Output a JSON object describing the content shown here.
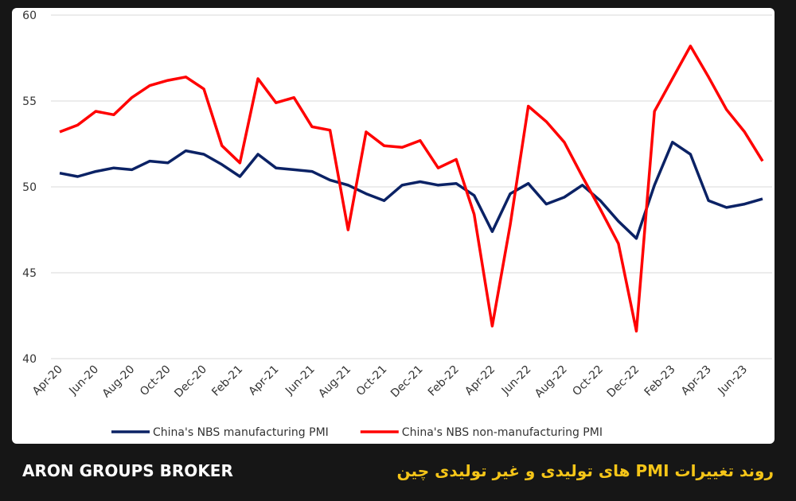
{
  "chart_data": {
    "type": "line",
    "categories": [
      "Apr-20",
      null,
      "Jun-20",
      null,
      "Aug-20",
      null,
      "Oct-20",
      null,
      "Dec-20",
      null,
      "Feb-21",
      null,
      "Apr-21",
      null,
      "Jun-21",
      null,
      "Aug-21",
      null,
      "Oct-21",
      null,
      "Dec-21",
      null,
      "Feb-22",
      null,
      "Apr-22",
      null,
      "Jun-22",
      null,
      "Aug-22",
      null,
      "Oct-22",
      null,
      "Dec-22",
      null,
      "Feb-23",
      null,
      "Apr-23",
      null,
      "Jun-23",
      null
    ],
    "series": [
      {
        "name": "China's NBS manufacturing PMI",
        "color": "#0b2265",
        "values": [
          50.8,
          50.6,
          50.9,
          51.1,
          51.0,
          51.5,
          51.4,
          52.1,
          51.9,
          51.3,
          50.6,
          51.9,
          51.1,
          51.0,
          50.9,
          50.4,
          50.1,
          49.6,
          49.2,
          50.1,
          50.3,
          50.1,
          50.2,
          49.5,
          47.4,
          49.6,
          50.2,
          49.0,
          49.4,
          50.1,
          49.2,
          48.0,
          47.0,
          50.1,
          52.6,
          51.9,
          49.2,
          48.8,
          49.0,
          49.3
        ]
      },
      {
        "name": "China's NBS non-manufacturing PMI",
        "color": "#ff0000",
        "values": [
          53.2,
          53.6,
          54.4,
          54.2,
          55.2,
          55.9,
          56.2,
          56.4,
          55.7,
          52.4,
          51.4,
          56.3,
          54.9,
          55.2,
          53.5,
          53.3,
          47.5,
          53.2,
          52.4,
          52.3,
          52.7,
          51.1,
          51.6,
          48.4,
          41.9,
          47.8,
          54.7,
          53.8,
          52.6,
          50.6,
          48.7,
          46.7,
          41.6,
          54.4,
          56.3,
          58.2,
          56.4,
          54.5,
          53.2,
          51.5
        ]
      }
    ],
    "ylim": [
      40,
      60
    ],
    "yticks": [
      40,
      45,
      50,
      55,
      60
    ],
    "grid": true,
    "legend": "bottom"
  },
  "footer": {
    "brand": "ARON GROUPS BROKER",
    "caption": "روند تغییرات PMI های تولیدی و غیر تولیدی چین"
  }
}
